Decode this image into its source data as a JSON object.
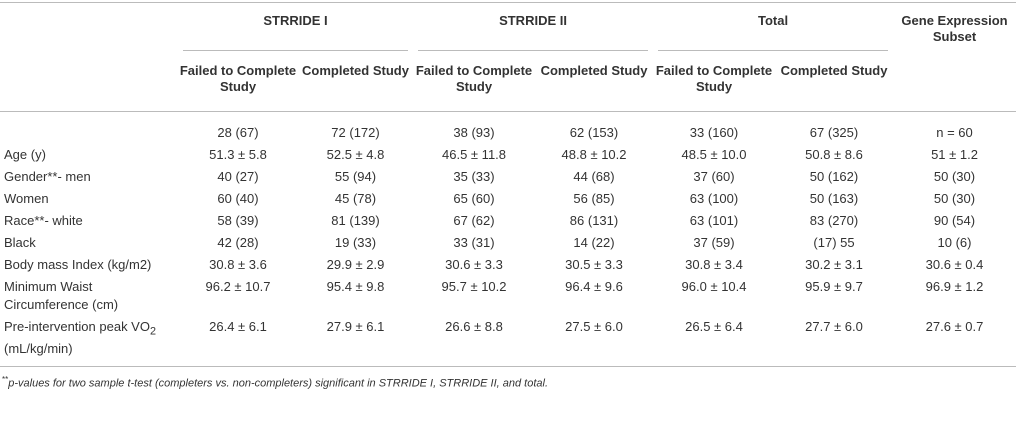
{
  "table": {
    "groups": [
      "STRRIDE I",
      "STRRIDE II",
      "Total",
      "Gene Expression Subset"
    ],
    "subheaders": [
      "Failed to Complete Study",
      "Completed Study",
      "Failed to Complete Study",
      "Completed Study",
      "Failed to Complete Study",
      "Completed Study"
    ],
    "rows": [
      {
        "label": null,
        "cells": [
          "28 (67)",
          "72 (172)",
          "38 (93)",
          "62 (153)",
          "33 (160)",
          "67 (325)",
          "n = 60"
        ]
      },
      {
        "label": "Age (y)",
        "cells": [
          "51.3 ± 5.8",
          "52.5 ± 4.8",
          "46.5 ± 11.8",
          "48.8 ± 10.2",
          "48.5 ± 10.0",
          "50.8 ± 8.6",
          "51 ± 1.2"
        ]
      },
      {
        "label": "Gender**- men",
        "cells": [
          "40 (27)",
          "55 (94)",
          "35 (33)",
          "44 (68)",
          "37 (60)",
          "50 (162)",
          "50 (30)"
        ]
      },
      {
        "label": "Women",
        "cells": [
          "60 (40)",
          "45 (78)",
          "65 (60)",
          "56 (85)",
          "63 (100)",
          "50 (163)",
          "50 (30)"
        ]
      },
      {
        "label": "Race**- white",
        "cells": [
          "58 (39)",
          "81 (139)",
          "67 (62)",
          "86 (131)",
          "63 (101)",
          "83 (270)",
          "90 (54)"
        ]
      },
      {
        "label": "Black",
        "cells": [
          "42 (28)",
          "19 (33)",
          "33 (31)",
          "14 (22)",
          "37 (59)",
          "(17) 55",
          "10 (6)"
        ]
      },
      {
        "label": "Body mass Index (kg/m2)",
        "cells": [
          "30.8 ± 3.6",
          "29.9 ± 2.9",
          "30.6 ± 3.3",
          "30.5 ± 3.3",
          "30.8 ± 3.4",
          "30.2 ± 3.1",
          "30.6 ± 0.4"
        ]
      },
      {
        "label": "Minimum Waist Circumference (cm)",
        "cells": [
          "96.2 ± 10.7",
          "95.4 ± 9.8",
          "95.7 ± 10.2",
          "96.4 ± 9.6",
          "96.0 ± 10.4",
          "95.9 ± 9.7",
          "96.9 ± 1.2"
        ]
      },
      {
        "label": {
          "main": "Pre-intervention peak VO",
          "sub": "2",
          "after": "(mL/kg/min)"
        },
        "cells": [
          "26.4 ± 6.1",
          "27.9 ± 6.1",
          "26.6 ± 8.8",
          "27.5 ± 6.0",
          "26.5 ± 6.4",
          "27.7 ± 6.0",
          "27.6 ± 0.7"
        ]
      }
    ],
    "footnote": {
      "mark": "**",
      "text": "p-values for two sample t-test (completers vs. non-completers) significant in STRRIDE I, STRRIDE II, and total."
    }
  }
}
